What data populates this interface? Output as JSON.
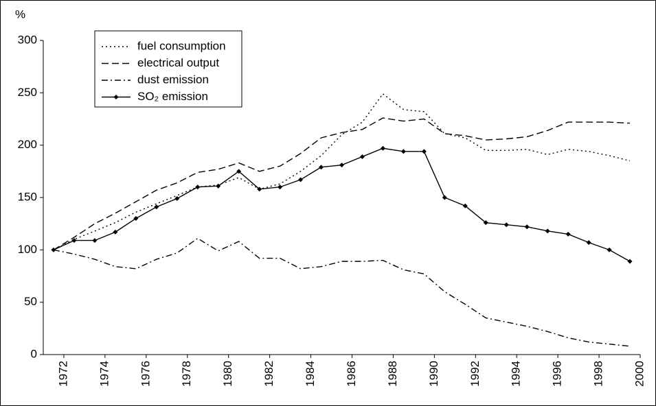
{
  "chart_data": {
    "type": "line",
    "ylabel": "%",
    "xlim": [
      1971,
      2000
    ],
    "xticks": [
      1972,
      1974,
      1976,
      1978,
      1980,
      1982,
      1984,
      1986,
      1988,
      1990,
      1992,
      1994,
      1996,
      1998,
      2000
    ],
    "ylim": [
      0,
      300
    ],
    "yticks": [
      0,
      50,
      100,
      150,
      200,
      250,
      300
    ],
    "x": [
      1971.5,
      1972.5,
      1973.5,
      1974.5,
      1975.5,
      1976.5,
      1977.5,
      1978.5,
      1979.5,
      1980.5,
      1981.5,
      1982.5,
      1983.5,
      1984.5,
      1985.5,
      1986.5,
      1987.5,
      1988.5,
      1989.5,
      1990.5,
      1991.5,
      1992.5,
      1993.5,
      1994.5,
      1995.5,
      1996.5,
      1997.5,
      1998.5,
      1999.5
    ],
    "legend": "upper left",
    "series": [
      {
        "name": "fuel consumption",
        "color": "#000000",
        "style": "dotted",
        "values": [
          100,
          110,
          118,
          126,
          136,
          144,
          152,
          160,
          162,
          169,
          158,
          163,
          175,
          190,
          210,
          222,
          249,
          234,
          232,
          211,
          207,
          195,
          195,
          196,
          191,
          196,
          194,
          190,
          185
        ]
      },
      {
        "name": "electrical output",
        "color": "#000000",
        "style": "dashed",
        "values": [
          100,
          112,
          125,
          135,
          146,
          157,
          164,
          174,
          177,
          183,
          175,
          180,
          192,
          207,
          212,
          215,
          226,
          223,
          225,
          211,
          209,
          205,
          206,
          208,
          214,
          222,
          222,
          222,
          221
        ]
      },
      {
        "name": "dust emission",
        "color": "#000000",
        "style": "dashdot",
        "values": [
          100,
          96,
          91,
          84,
          82,
          91,
          97,
          111,
          99,
          108,
          92,
          92,
          82,
          84,
          89,
          89,
          90,
          81,
          77,
          60,
          48,
          35,
          31,
          27,
          22,
          16,
          12,
          10,
          8
        ]
      },
      {
        "name": "SO₂ emission",
        "color": "#000000",
        "style": "solid",
        "marker": "diamond",
        "values": [
          100,
          109,
          109,
          117,
          130,
          141,
          149,
          160,
          161,
          175,
          158,
          160,
          167,
          179,
          181,
          189,
          197,
          194,
          194,
          150,
          142,
          126,
          124,
          122,
          118,
          115,
          107,
          100,
          89
        ]
      }
    ]
  }
}
